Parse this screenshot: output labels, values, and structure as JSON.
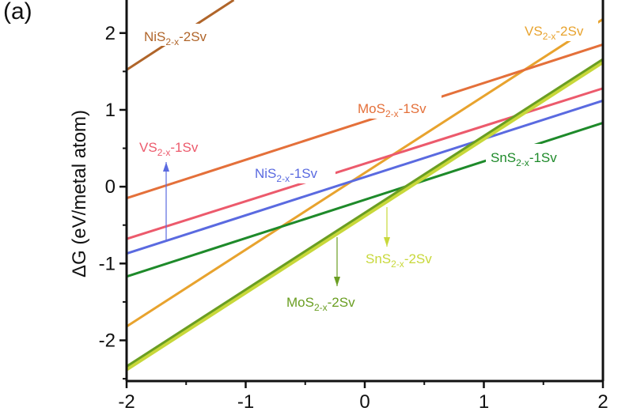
{
  "chart_data": {
    "type": "line",
    "panel_label": "(a)",
    "xlabel": "",
    "ylabel": "ΔG (eV/metal atom)",
    "xlim": [
      -2,
      2
    ],
    "ylim": [
      -2.53,
      2.43
    ],
    "xticks": [
      "-2",
      "-1",
      "0",
      "1",
      "2"
    ],
    "yticks": [
      "-2",
      "-1",
      "0",
      "1",
      "2"
    ],
    "grid": false,
    "series": [
      {
        "label": {
          "base": "NiS",
          "sub": "2-x",
          "suffix": "-2Sv"
        },
        "color": "#b0652a",
        "x": [
          -2,
          -1.1
        ],
        "y": [
          1.52,
          2.43
        ]
      },
      {
        "label": {
          "base": "VS",
          "sub": "2-x",
          "suffix": "-2Sv"
        },
        "color": "#e8a32e",
        "x": [
          -2,
          2
        ],
        "y": [
          -1.82,
          2.18
        ]
      },
      {
        "label": {
          "base": "MoS",
          "sub": "2-x",
          "suffix": "-1Sv"
        },
        "color": "#e4703a",
        "x": [
          -2,
          2
        ],
        "y": [
          -0.15,
          1.85
        ]
      },
      {
        "label": {
          "base": "VS",
          "sub": "2-x",
          "suffix": "-1Sv"
        },
        "color": "#ec5a6c",
        "x": [
          -2,
          2
        ],
        "y": [
          -0.68,
          1.28
        ]
      },
      {
        "label": {
          "base": "NiS",
          "sub": "2-x",
          "suffix": "-1Sv"
        },
        "color": "#5a6ae0",
        "x": [
          -2,
          2
        ],
        "y": [
          -0.87,
          1.12
        ]
      },
      {
        "label": {
          "base": "SnS",
          "sub": "2-x",
          "suffix": "-1Sv"
        },
        "color": "#1e8a2a",
        "x": [
          -2,
          2
        ],
        "y": [
          -1.17,
          0.83
        ]
      },
      {
        "label": {
          "base": "SnS",
          "sub": "2-x",
          "suffix": "-2Sv"
        },
        "color": "#c8d83a",
        "x": [
          -2,
          2
        ],
        "y": [
          -2.37,
          1.63
        ]
      },
      {
        "label": {
          "base": "MoS",
          "sub": "2-x",
          "suffix": "-2Sv"
        },
        "color": "#6a9e22",
        "x": [
          -2,
          2
        ],
        "y": [
          -2.34,
          1.66
        ]
      }
    ]
  }
}
